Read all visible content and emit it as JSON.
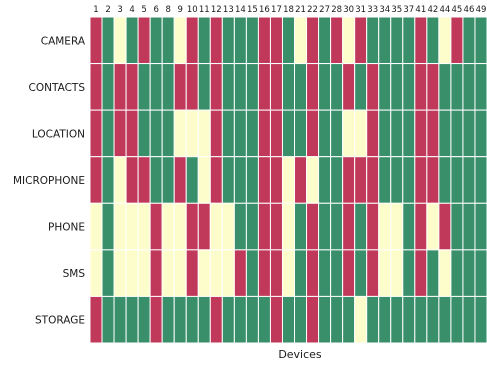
{
  "chart_data": {
    "type": "heatmap",
    "xlabel": "Devices",
    "ylabel": "",
    "x_categories": [
      "1",
      "2",
      "3",
      "4",
      "5",
      "6",
      "8",
      "9",
      "10",
      "11",
      "12",
      "13",
      "14",
      "15",
      "16",
      "17",
      "18",
      "21",
      "22",
      "27",
      "28",
      "30",
      "31",
      "33",
      "34",
      "35",
      "37",
      "41",
      "42",
      "44",
      "45",
      "46",
      "49"
    ],
    "y_categories": [
      "CAMERA",
      "CONTACTS",
      "LOCATION",
      "MICROPHONE",
      "PHONE",
      "SMS",
      "STORAGE"
    ],
    "legend": {
      "R": "#c0395a",
      "G": "#388f6a",
      "Y": "#fdfdcc"
    },
    "matrix": [
      [
        "R",
        "G",
        "Y",
        "G",
        "R",
        "G",
        "G",
        "Y",
        "R",
        "G",
        "R",
        "G",
        "G",
        "G",
        "R",
        "R",
        "G",
        "Y",
        "R",
        "G",
        "R",
        "Y",
        "R",
        "G",
        "G",
        "G",
        "G",
        "R",
        "G",
        "Y",
        "R",
        "G",
        "G"
      ],
      [
        "R",
        "G",
        "R",
        "R",
        "G",
        "G",
        "G",
        "R",
        "R",
        "G",
        "R",
        "G",
        "G",
        "G",
        "R",
        "R",
        "G",
        "G",
        "R",
        "G",
        "G",
        "R",
        "G",
        "R",
        "G",
        "G",
        "G",
        "R",
        "R",
        "G",
        "G",
        "G",
        "G"
      ],
      [
        "R",
        "G",
        "R",
        "R",
        "G",
        "G",
        "G",
        "Y",
        "Y",
        "Y",
        "R",
        "G",
        "G",
        "G",
        "R",
        "R",
        "G",
        "G",
        "R",
        "G",
        "G",
        "Y",
        "Y",
        "R",
        "G",
        "G",
        "G",
        "R",
        "R",
        "G",
        "G",
        "G",
        "G"
      ],
      [
        "R",
        "G",
        "Y",
        "R",
        "R",
        "G",
        "G",
        "R",
        "G",
        "Y",
        "R",
        "G",
        "G",
        "G",
        "R",
        "R",
        "Y",
        "R",
        "Y",
        "G",
        "G",
        "R",
        "R",
        "R",
        "G",
        "G",
        "G",
        "R",
        "R",
        "G",
        "G",
        "G",
        "G"
      ],
      [
        "Y",
        "G",
        "Y",
        "Y",
        "Y",
        "R",
        "Y",
        "Y",
        "R",
        "R",
        "Y",
        "Y",
        "G",
        "G",
        "R",
        "R",
        "Y",
        "G",
        "R",
        "G",
        "G",
        "R",
        "G",
        "R",
        "Y",
        "Y",
        "G",
        "R",
        "Y",
        "R",
        "G",
        "G",
        "G"
      ],
      [
        "Y",
        "G",
        "Y",
        "Y",
        "Y",
        "R",
        "Y",
        "Y",
        "R",
        "Y",
        "Y",
        "Y",
        "R",
        "G",
        "R",
        "R",
        "Y",
        "G",
        "R",
        "G",
        "G",
        "R",
        "G",
        "R",
        "Y",
        "Y",
        "G",
        "R",
        "G",
        "Y",
        "G",
        "G",
        "G"
      ],
      [
        "R",
        "G",
        "G",
        "G",
        "G",
        "R",
        "G",
        "G",
        "G",
        "G",
        "R",
        "G",
        "G",
        "G",
        "G",
        "R",
        "G",
        "G",
        "R",
        "G",
        "G",
        "G",
        "Y",
        "G",
        "G",
        "G",
        "G",
        "G",
        "G",
        "G",
        "G",
        "G",
        "G"
      ]
    ]
  }
}
